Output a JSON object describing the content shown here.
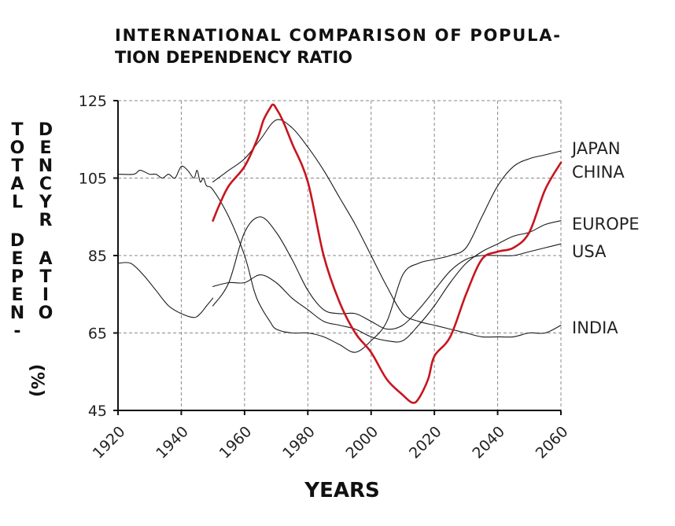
{
  "chart_data": {
    "type": "line",
    "title_lines": [
      "INTERNATIONAL COMPARISON OF POPULA-",
      "TION DEPENDENCY RATIO"
    ],
    "xlabel": "YEARS",
    "ylabel_lines": [
      "TOTAL DEPEN-",
      "DENCY RATIO",
      "(%)"
    ],
    "xlim": [
      1920,
      2060
    ],
    "ylim": [
      45,
      125
    ],
    "xticks": [
      1920,
      1940,
      1960,
      1980,
      2000,
      2020,
      2040,
      2060
    ],
    "yticks": [
      45,
      65,
      85,
      105,
      125
    ],
    "xtick_labels": [
      "1920",
      "1940",
      "1960",
      "1980",
      "2000",
      "2020",
      "2040",
      "2060"
    ],
    "ytick_labels": [
      "45",
      "65",
      "85",
      "105",
      "125"
    ],
    "grid": true,
    "series": [
      {
        "name": "JAPAN",
        "color": "#1a1a1a",
        "highlight": false,
        "x": [
          1920,
          1925,
          1927,
          1930,
          1932,
          1934,
          1936,
          1938,
          1940,
          1942,
          1944,
          1945,
          1946,
          1947,
          1948,
          1950,
          1955,
          1960,
          1963,
          1965,
          1968,
          1970,
          1975,
          1980,
          1985,
          1990,
          1995,
          2000,
          2005,
          2010,
          2015,
          2020,
          2025,
          2030,
          2035,
          2040,
          2045,
          2050,
          2055,
          2060
        ],
        "values": [
          106,
          106,
          107,
          106,
          106,
          105,
          106,
          105,
          108,
          107,
          105,
          107,
          104,
          105,
          103,
          102,
          95,
          85,
          76,
          72,
          68,
          66,
          65,
          65,
          64,
          62,
          60,
          63,
          68,
          80,
          83,
          84,
          85,
          87,
          95,
          103,
          108,
          110,
          111,
          112
        ]
      },
      {
        "name": "CHINA",
        "color": "#c8141e",
        "highlight": true,
        "x": [
          1950,
          1952,
          1955,
          1960,
          1964,
          1966,
          1968,
          1969,
          1970,
          1972,
          1975,
          1980,
          1985,
          1990,
          1995,
          2000,
          2005,
          2010,
          2013,
          2015,
          2018,
          2020,
          2025,
          2030,
          2035,
          2040,
          2045,
          2050,
          2055,
          2060
        ],
        "values": [
          94,
          98,
          103,
          108,
          115,
          120,
          123,
          124,
          123,
          120,
          114,
          104,
          85,
          73,
          65,
          60,
          53,
          49,
          47,
          48,
          53,
          59,
          64,
          75,
          84,
          86,
          87,
          91,
          102,
          109
        ]
      },
      {
        "name": "EUROPE",
        "color": "#1a1a1a",
        "highlight": false,
        "x": [
          1950,
          1955,
          1960,
          1965,
          1970,
          1975,
          1980,
          1985,
          1990,
          1995,
          2000,
          2005,
          2010,
          2015,
          2020,
          2025,
          2030,
          2035,
          2040,
          2045,
          2050,
          2055,
          2060
        ],
        "values": [
          77,
          78,
          78,
          80,
          78,
          74,
          71,
          68,
          67,
          66,
          64,
          63,
          63,
          67,
          72,
          78,
          83,
          86,
          88,
          90,
          91,
          93,
          94
        ]
      },
      {
        "name": "USA",
        "color": "#1a1a1a",
        "highlight": false,
        "x": [
          1950,
          1955,
          1960,
          1965,
          1970,
          1975,
          1980,
          1985,
          1990,
          1995,
          2000,
          2005,
          2010,
          2015,
          2020,
          2025,
          2030,
          2035,
          2040,
          2045,
          2050,
          2055,
          2060
        ],
        "values": [
          72,
          78,
          91,
          95,
          91,
          84,
          76,
          71,
          70,
          70,
          68,
          66,
          67,
          71,
          76,
          81,
          84,
          85,
          85,
          85,
          86,
          87,
          88
        ]
      },
      {
        "name": "INDIA",
        "color": "#1a1a1a",
        "highlight": false,
        "x": [
          1950,
          1955,
          1960,
          1965,
          1970,
          1975,
          1980,
          1985,
          1990,
          1995,
          2000,
          2005,
          2010,
          2015,
          2020,
          2025,
          2030,
          2035,
          2040,
          2045,
          2050,
          2055,
          2060
        ],
        "values": [
          104,
          107,
          110,
          115,
          120,
          118,
          113,
          107,
          100,
          93,
          85,
          77,
          70,
          68,
          67,
          66,
          65,
          64,
          64,
          64,
          65,
          65,
          67
        ]
      },
      {
        "name": "",
        "color": "#1a1a1a",
        "highlight": false,
        "note": "pre-1950 trace",
        "x": [
          1920,
          1924,
          1928,
          1932,
          1936,
          1940,
          1944,
          1946,
          1948,
          1950
        ],
        "values": [
          83,
          83,
          80,
          76,
          72,
          70,
          69,
          70,
          72,
          74
        ]
      }
    ],
    "series_labels": [
      "JAPAN",
      "CHINA",
      "EUROPE",
      "USA",
      "INDIA"
    ]
  }
}
